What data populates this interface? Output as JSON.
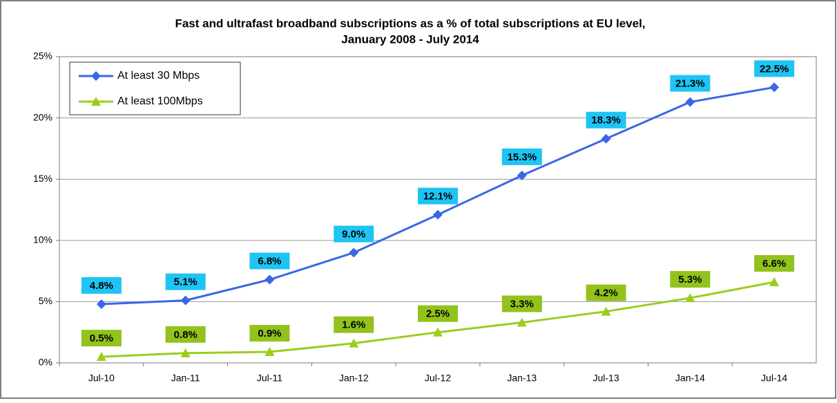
{
  "chart_data": {
    "type": "line",
    "title": "Fast and ultrafast broadband subscriptions as a %  of total subscriptions at EU level,",
    "subtitle": "January 2008 - July 2014",
    "categories": [
      "Jul-10",
      "Jan-11",
      "Jul-11",
      "Jan-12",
      "Jul-12",
      "Jan-13",
      "Jul-13",
      "Jan-14",
      "Jul-14"
    ],
    "series": [
      {
        "name": "At least 30 Mbps",
        "color": "#3a66e8",
        "label_color": "#1ec4f4",
        "marker": "diamond",
        "values": [
          4.8,
          5.1,
          6.8,
          9.0,
          12.1,
          15.3,
          18.3,
          21.3,
          22.5
        ],
        "value_labels": [
          "4.8%",
          "5.1%",
          "6.8%",
          "9.0%",
          "12.1%",
          "15.3%",
          "18.3%",
          "21.3%",
          "22.5%"
        ]
      },
      {
        "name": "At least 100Mbps",
        "color": "#9acd1e",
        "label_color": "#92c21c",
        "marker": "triangle",
        "values": [
          0.5,
          0.8,
          0.9,
          1.6,
          2.5,
          3.3,
          4.2,
          5.3,
          6.6
        ],
        "value_labels": [
          "0.5%",
          "0.8%",
          "0.9%",
          "1.6%",
          "2.5%",
          "3.3%",
          "4.2%",
          "5.3%",
          "6.6%"
        ]
      }
    ],
    "ylim": [
      0,
      25
    ],
    "yticks": [
      {
        "value": 0,
        "label": "0%"
      },
      {
        "value": 5,
        "label": "5%"
      },
      {
        "value": 10,
        "label": "10%"
      },
      {
        "value": 15,
        "label": "15%"
      },
      {
        "value": 20,
        "label": "20%"
      },
      {
        "value": 25,
        "label": "25%"
      }
    ],
    "grid": true,
    "legend": "upper left"
  }
}
